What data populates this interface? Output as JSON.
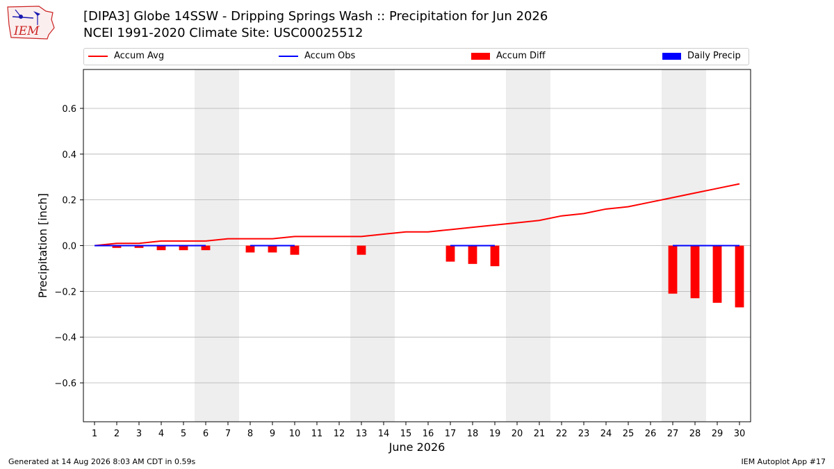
{
  "header": {
    "title": "[DIPA3] Globe 14SSW - Dripping Springs Wash :: Precipitation for Jun 2026",
    "subtitle": "NCEI 1991-2020 Climate Site: USC00025512"
  },
  "logo": {
    "text": "IEM"
  },
  "footer": {
    "left": "Generated at 14 Aug 2026 8:03 AM CDT in 0.59s",
    "right": "IEM Autoplot App #17"
  },
  "legend": [
    {
      "label": "Accum Avg",
      "kind": "line",
      "color": "#ff0000"
    },
    {
      "label": "Accum Obs",
      "kind": "line",
      "color": "#0000ff"
    },
    {
      "label": "Accum Diff",
      "kind": "box",
      "color": "#ff0000"
    },
    {
      "label": "Daily Precip",
      "kind": "box",
      "color": "#0000ff"
    }
  ],
  "chart_data": {
    "type": "bar",
    "xlabel": "June 2026",
    "ylabel": "Precipitation [inch]",
    "x": [
      1,
      2,
      3,
      4,
      5,
      6,
      7,
      8,
      9,
      10,
      11,
      12,
      13,
      14,
      15,
      16,
      17,
      18,
      19,
      20,
      21,
      22,
      23,
      24,
      25,
      26,
      27,
      28,
      29,
      30
    ],
    "xlim": [
      0.5,
      30.5
    ],
    "ylim": [
      -0.77,
      0.77
    ],
    "yticks": [
      -0.6,
      -0.4,
      -0.2,
      0.0,
      0.2,
      0.4,
      0.6
    ],
    "ytick_labels": [
      "−0.6",
      "−0.4",
      "−0.2",
      "0.0",
      "0.2",
      "0.4",
      "0.6"
    ],
    "grid": true,
    "legend_position": "top",
    "weekend_shading": [
      [
        5.5,
        7.5
      ],
      [
        12.5,
        14.5
      ],
      [
        19.5,
        21.5
      ],
      [
        26.5,
        28.5
      ]
    ],
    "series": [
      {
        "name": "Accum Avg",
        "kind": "line",
        "color": "#ff0000",
        "values": [
          0.0,
          0.01,
          0.01,
          0.02,
          0.02,
          0.02,
          0.03,
          0.03,
          0.03,
          0.04,
          0.04,
          0.04,
          0.04,
          0.05,
          0.06,
          0.06,
          0.07,
          0.08,
          0.09,
          0.1,
          0.11,
          0.13,
          0.14,
          0.16,
          0.17,
          0.19,
          0.21,
          0.23,
          0.25,
          0.27
        ]
      },
      {
        "name": "Accum Obs",
        "kind": "line",
        "color": "#0000ff",
        "segments": [
          [
            1,
            6
          ],
          [
            8,
            10
          ],
          [
            17,
            19
          ],
          [
            27,
            30
          ]
        ],
        "values": [
          0,
          0,
          0,
          0,
          0,
          0,
          null,
          0,
          0,
          0,
          null,
          null,
          null,
          null,
          null,
          null,
          0,
          0,
          0,
          null,
          null,
          null,
          null,
          null,
          null,
          null,
          0,
          0,
          0,
          0
        ]
      },
      {
        "name": "Accum Diff",
        "kind": "bar",
        "color": "#ff0000",
        "values": [
          0.0,
          -0.01,
          -0.01,
          -0.02,
          -0.02,
          -0.02,
          null,
          -0.03,
          -0.03,
          -0.04,
          null,
          null,
          -0.04,
          null,
          null,
          null,
          -0.07,
          -0.08,
          -0.09,
          null,
          null,
          null,
          null,
          null,
          null,
          null,
          -0.21,
          -0.23,
          -0.25,
          -0.27
        ]
      },
      {
        "name": "Daily Precip",
        "kind": "bar",
        "color": "#0000ff",
        "values": [
          0,
          0,
          0,
          0,
          0,
          0,
          0,
          0,
          0,
          0,
          0,
          0,
          0,
          0,
          0,
          0,
          0,
          0,
          0,
          0,
          0,
          0,
          0,
          0,
          0,
          0,
          0,
          0,
          0,
          0
        ]
      }
    ]
  }
}
